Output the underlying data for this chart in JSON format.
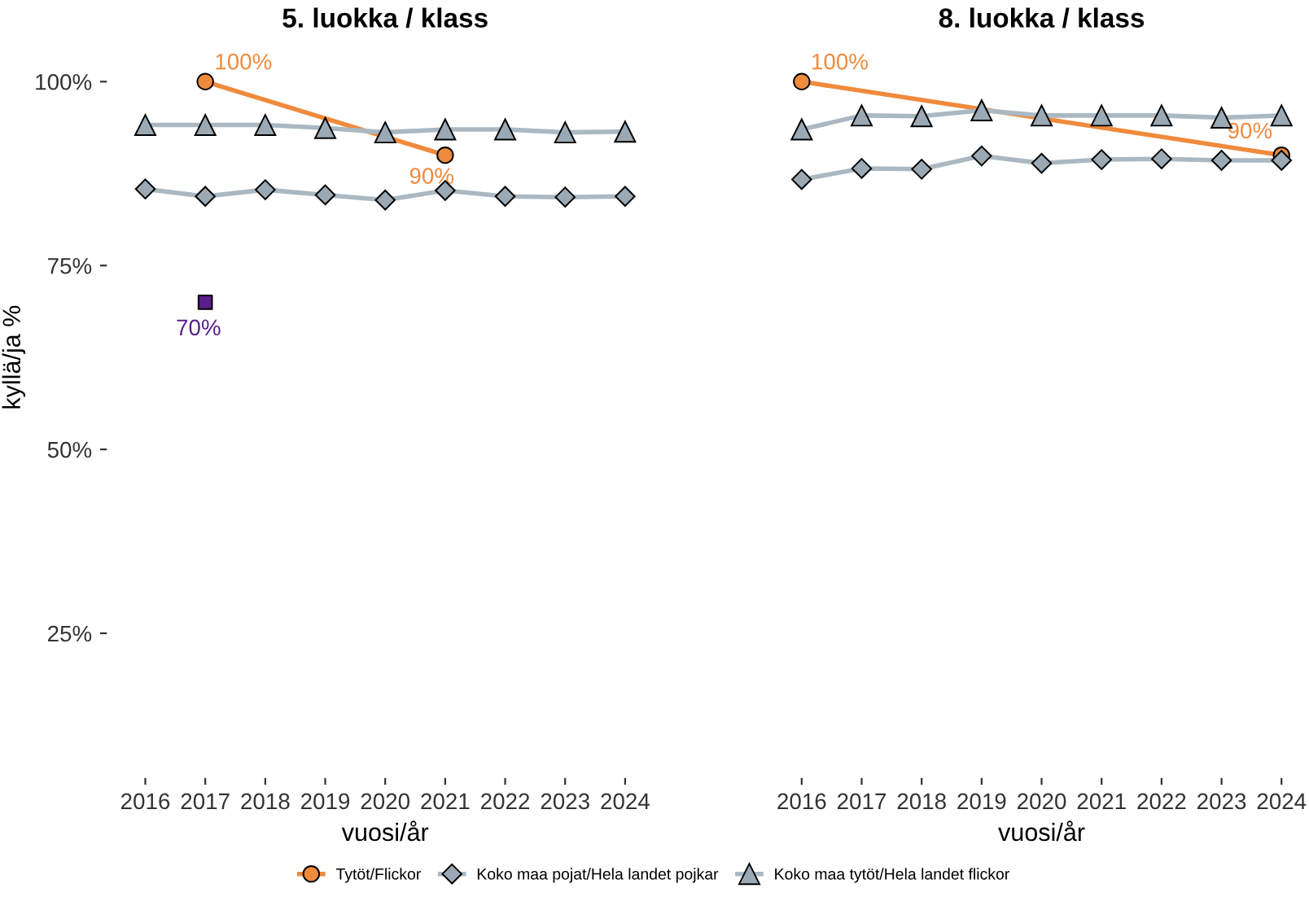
{
  "chart_data": [
    {
      "type": "line",
      "title": "5. luokka / klass",
      "xlabel": "vuosi/år",
      "ylabel": "kyllä/ja %",
      "xlim": [
        2016,
        2024
      ],
      "ylim": [
        25,
        100
      ],
      "xticks": [
        2016,
        2017,
        2018,
        2019,
        2020,
        2021,
        2022,
        2023,
        2024
      ],
      "yticks": [
        {
          "value": 25,
          "label": "25%"
        },
        {
          "value": 50,
          "label": "50%"
        },
        {
          "value": 75,
          "label": "75%"
        },
        {
          "value": 100,
          "label": "100%"
        }
      ],
      "grid": false,
      "legend": "bottom",
      "series": [
        {
          "name": "Tytöt/Flickor",
          "color": "#f08a3c",
          "marker": "circle",
          "x": [
            2017,
            2021
          ],
          "values": [
            100,
            90
          ],
          "value_labels": [
            "100%",
            "90%"
          ]
        },
        {
          "name": "Koko maa pojat/Hela landet pojkar",
          "color": "#9aa9b4",
          "marker": "diamond",
          "x": [
            2016,
            2017,
            2018,
            2019,
            2020,
            2021,
            2022,
            2023,
            2024
          ],
          "values": [
            85.4,
            84.4,
            85.3,
            84.6,
            83.9,
            85.2,
            84.4,
            84.3,
            84.4
          ]
        },
        {
          "name": "Koko maa tytöt/Hela landet flickor",
          "color": "#9aa9b4",
          "marker": "triangle",
          "x": [
            2016,
            2017,
            2018,
            2019,
            2020,
            2021,
            2022,
            2023,
            2024
          ],
          "values": [
            94.1,
            94.1,
            94.1,
            93.7,
            93.1,
            93.5,
            93.5,
            93.1,
            93.2
          ]
        },
        {
          "type": "scatter",
          "color": "#5a1e8c",
          "marker": "square",
          "x": [
            2017
          ],
          "values": [
            70
          ],
          "value_labels": [
            "70%"
          ]
        }
      ]
    },
    {
      "type": "line",
      "title": "8. luokka / klass",
      "xlabel": "vuosi/år",
      "xlim": [
        2016,
        2024
      ],
      "ylim": [
        25,
        100
      ],
      "xticks": [
        2016,
        2017,
        2018,
        2019,
        2020,
        2021,
        2022,
        2023,
        2024
      ],
      "grid": false,
      "tick_labels": "x",
      "series": [
        {
          "color": "#f08a3c",
          "marker": "circle",
          "x": [
            2016,
            2024
          ],
          "values": [
            100,
            90
          ],
          "value_labels": [
            "100%",
            "90%"
          ]
        },
        {
          "color": "#9aa9b4",
          "marker": "diamond",
          "x": [
            2016,
            2017,
            2018,
            2019,
            2020,
            2021,
            2022,
            2023,
            2024
          ],
          "values": [
            86.7,
            88.2,
            88.1,
            89.9,
            88.9,
            89.4,
            89.5,
            89.3,
            89.3
          ]
        },
        {
          "color": "#9aa9b4",
          "marker": "triangle",
          "x": [
            2016,
            2017,
            2018,
            2019,
            2020,
            2021,
            2022,
            2023,
            2024
          ],
          "values": [
            93.5,
            95.4,
            95.3,
            96.1,
            95.4,
            95.4,
            95.4,
            95.1,
            95.4
          ]
        }
      ]
    }
  ]
}
